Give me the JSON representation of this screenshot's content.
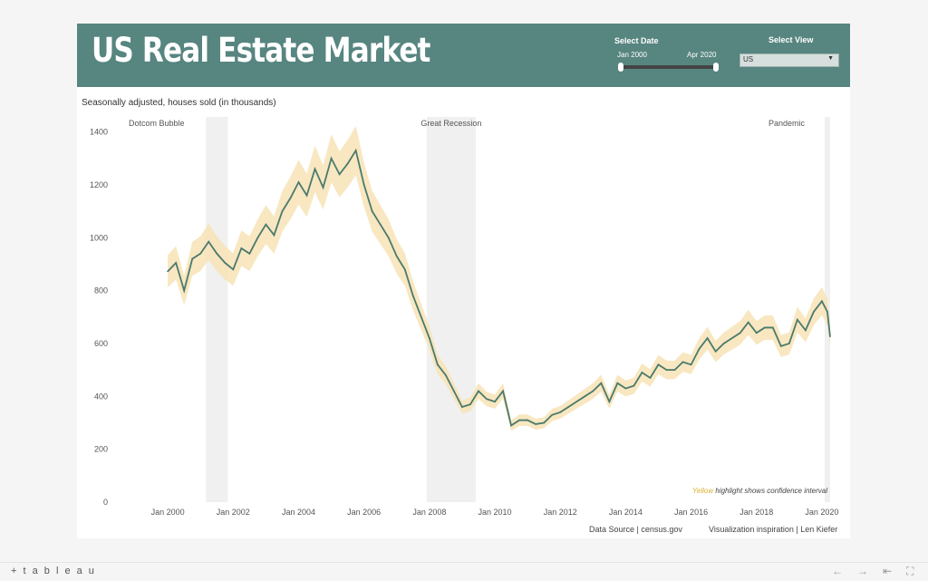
{
  "header": {
    "title": "US Real Estate Market",
    "date_control": {
      "label": "Select Date",
      "start": "Jan 2000",
      "end": "Apr 2020"
    },
    "view_control": {
      "label": "Select View",
      "selected": "US"
    }
  },
  "subtitle": "Seasonally adjusted, houses sold (in thousands)",
  "footer": {
    "source": "Data Source | census.gov",
    "credit": "Visualization inspiration |  Len Kiefer"
  },
  "bottom_bar": {
    "logo": "+ t a b l e a u"
  },
  "colors": {
    "header": "#578580",
    "line": "#4a7a6d",
    "band": "#f7e3b5",
    "recession": "#f0f0f0",
    "highlight": "#e0c040"
  },
  "icons": [
    "tableau-logo-icon",
    "undo-icon",
    "redo-icon",
    "revert-icon",
    "fullscreen-icon"
  ],
  "chart_data": {
    "type": "line",
    "title": "",
    "xlabel": "",
    "ylabel": "",
    "x_range": [
      "Jan 2000",
      "Apr 2020"
    ],
    "ylim": [
      0,
      1450
    ],
    "y_ticks": [
      0,
      200,
      400,
      600,
      800,
      1000,
      1200,
      1400
    ],
    "x_ticks": [
      "Jan 2000",
      "Jan 2002",
      "Jan 2004",
      "Jan 2006",
      "Jan 2008",
      "Jan 2010",
      "Jan 2012",
      "Jan 2014",
      "Jan 2016",
      "Jan 2018",
      "Jan 2020"
    ],
    "annotation": {
      "highlight_word": "Yellow",
      "text": " highlight shows confidence interval"
    },
    "shaded_periods": [
      {
        "label": "Dotcom Bubble",
        "start": "Mar 2001",
        "end": "Nov 2001"
      },
      {
        "label": "Great Recession",
        "start": "Dec 2007",
        "end": "Jun 2009"
      },
      {
        "label": "Pandemic",
        "start": "Feb 2020",
        "end": "Apr 2020"
      }
    ],
    "confidence_interval_pct": 7,
    "series": [
      {
        "x": [
          "Jan 2000",
          "Apr 2000",
          "Jul 2000",
          "Oct 2000",
          "Jan 2001",
          "Apr 2001",
          "Jul 2001",
          "Oct 2001",
          "Jan 2002",
          "Apr 2002",
          "Jul 2002",
          "Oct 2002",
          "Jan 2003",
          "Apr 2003",
          "Jul 2003",
          "Oct 2003",
          "Jan 2004",
          "Apr 2004",
          "Jul 2004",
          "Oct 2004",
          "Jan 2005",
          "Apr 2005",
          "Jul 2005",
          "Oct 2005",
          "Jan 2006",
          "Apr 2006",
          "Jul 2006",
          "Oct 2006",
          "Jan 2007",
          "Apr 2007",
          "Jul 2007",
          "Oct 2007",
          "Jan 2008",
          "Apr 2008",
          "Jul 2008",
          "Oct 2008",
          "Jan 2009",
          "Apr 2009",
          "Jul 2009",
          "Oct 2009",
          "Jan 2010",
          "Apr 2010",
          "Jul 2010",
          "Oct 2010",
          "Jan 2011",
          "Apr 2011",
          "Jul 2011",
          "Oct 2011",
          "Jan 2012",
          "Apr 2012",
          "Jul 2012",
          "Oct 2012",
          "Jan 2013",
          "Apr 2013",
          "Jul 2013",
          "Oct 2013",
          "Jan 2014",
          "Apr 2014",
          "Jul 2014",
          "Oct 2014",
          "Jan 2015",
          "Apr 2015",
          "Jul 2015",
          "Oct 2015",
          "Jan 2016",
          "Apr 2016",
          "Jul 2016",
          "Oct 2016",
          "Jan 2017",
          "Apr 2017",
          "Jul 2017",
          "Oct 2017",
          "Jan 2018",
          "Apr 2018",
          "Jul 2018",
          "Oct 2018",
          "Jan 2019",
          "Apr 2019",
          "Jul 2019",
          "Oct 2019",
          "Jan 2020",
          "Mar 2020",
          "Apr 2020"
        ],
        "values": [
          873,
          905,
          800,
          920,
          940,
          985,
          940,
          905,
          880,
          960,
          940,
          1000,
          1050,
          1010,
          1100,
          1150,
          1210,
          1160,
          1260,
          1190,
          1300,
          1240,
          1280,
          1330,
          1200,
          1100,
          1050,
          1000,
          930,
          880,
          780,
          700,
          620,
          520,
          480,
          420,
          360,
          370,
          420,
          390,
          380,
          420,
          290,
          310,
          310,
          295,
          300,
          330,
          340,
          360,
          380,
          400,
          420,
          450,
          380,
          450,
          430,
          440,
          490,
          470,
          520,
          500,
          500,
          530,
          520,
          580,
          620,
          570,
          600,
          620,
          640,
          680,
          640,
          660,
          660,
          590,
          600,
          690,
          650,
          720,
          760,
          720,
          627
        ]
      }
    ]
  }
}
